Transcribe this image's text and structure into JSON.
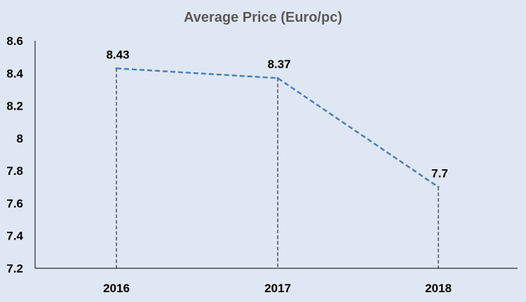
{
  "chart_data": {
    "type": "line",
    "title": "Average Price (Euro/pc)",
    "categories": [
      "2016",
      "2017",
      "2018"
    ],
    "series": [
      {
        "values": [
          8.43,
          8.37,
          7.7
        ]
      }
    ],
    "data_labels": [
      "8.43",
      "8.37",
      "7.7"
    ],
    "y_ticks": [
      "7.2",
      "7.4",
      "7.6",
      "7.8",
      "8",
      "8.2",
      "8.4",
      "8.6"
    ],
    "ylim": [
      7.2,
      8.6
    ],
    "line_style": "dashed",
    "drop_lines": true,
    "grid": false,
    "legend": "none",
    "colors": {
      "line": "#4a7ebb",
      "drop_line": "#000000",
      "axis": "#000000"
    }
  }
}
